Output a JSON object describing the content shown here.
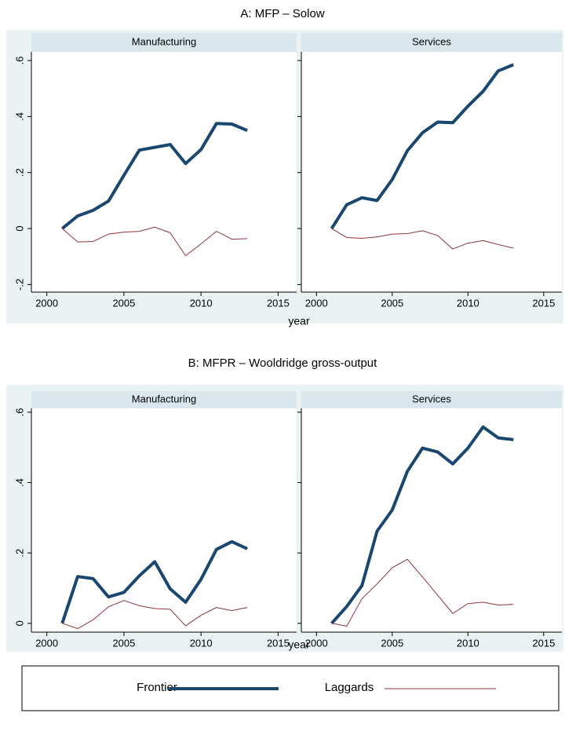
{
  "panels": [
    {
      "title": "A: MFP – Solow",
      "xlabel": "year"
    },
    {
      "title": "B: MFPR – Wooldridge gross-output",
      "xlabel": "year"
    }
  ],
  "chart_data": [
    {
      "type": "line",
      "title": "Manufacturing",
      "x": [
        2001,
        2002,
        2003,
        2004,
        2005,
        2006,
        2007,
        2008,
        2009,
        2010,
        2011,
        2012,
        2013
      ],
      "series": [
        {
          "name": "Frontier",
          "color": "#1a476f",
          "values": [
            0,
            0.045,
            0.065,
            0.098,
            0.19,
            0.28,
            0.29,
            0.3,
            0.232,
            0.282,
            0.375,
            0.373,
            0.35
          ]
        },
        {
          "name": "Laggards",
          "color": "#90353b",
          "values": [
            0,
            -0.048,
            -0.046,
            -0.02,
            -0.013,
            -0.01,
            0.005,
            -0.015,
            -0.097,
            -0.055,
            -0.01,
            -0.038,
            -0.036
          ]
        }
      ],
      "xlim": [
        1999,
        2016.2
      ],
      "xticks": [
        2000,
        2005,
        2010,
        2015
      ],
      "ylim": [
        -0.227,
        0.631
      ],
      "yticks": [
        {
          "value": -0.2,
          "label": "-.2"
        },
        0,
        {
          "value": 0.2,
          "label": ".2"
        },
        {
          "value": 0.4,
          "label": ".4"
        },
        {
          "value": 0.6,
          "label": ".6"
        }
      ]
    },
    {
      "type": "line",
      "title": "Services",
      "x": [
        2001,
        2002,
        2003,
        2004,
        2005,
        2006,
        2007,
        2008,
        2009,
        2010,
        2011,
        2012,
        2013
      ],
      "series": [
        {
          "name": "Frontier",
          "color": "#1a476f",
          "values": [
            0,
            0.085,
            0.11,
            0.1,
            0.175,
            0.278,
            0.342,
            0.38,
            0.378,
            0.437,
            0.49,
            0.563,
            0.585
          ]
        },
        {
          "name": "Laggards",
          "color": "#90353b",
          "values": [
            0,
            -0.032,
            -0.035,
            -0.03,
            -0.02,
            -0.018,
            -0.008,
            -0.025,
            -0.073,
            -0.052,
            -0.043,
            -0.057,
            -0.07
          ]
        }
      ],
      "xlim": [
        1999,
        2016.2
      ],
      "xticks": [
        2000,
        2005,
        2010,
        2015
      ],
      "ylim": [
        -0.227,
        0.631
      ],
      "yticks": [
        {
          "value": -0.2,
          "label": "-.2"
        },
        0,
        {
          "value": 0.2,
          "label": ".2"
        },
        {
          "value": 0.4,
          "label": ".4"
        },
        {
          "value": 0.6,
          "label": ".6"
        }
      ]
    },
    {
      "type": "line",
      "title": "Manufacturing",
      "x": [
        2001,
        2002,
        2003,
        2004,
        2005,
        2006,
        2007,
        2008,
        2009,
        2010,
        2011,
        2012,
        2013
      ],
      "series": [
        {
          "name": "Frontier",
          "color": "#1a476f",
          "values": [
            0,
            0.133,
            0.127,
            0.075,
            0.088,
            0.135,
            0.175,
            0.098,
            0.06,
            0.125,
            0.21,
            0.232,
            0.212
          ]
        },
        {
          "name": "Laggards",
          "color": "#90353b",
          "values": [
            0,
            -0.015,
            0.01,
            0.047,
            0.065,
            0.05,
            0.042,
            0.04,
            -0.007,
            0.023,
            0.045,
            0.036,
            0.045
          ]
        }
      ],
      "xlim": [
        1999,
        2016.2
      ],
      "xticks": [
        2000,
        2005,
        2010,
        2015
      ],
      "ylim": [
        -0.025,
        0.611
      ],
      "yticks": [
        0,
        {
          "value": 0.2,
          "label": ".2"
        },
        {
          "value": 0.4,
          "label": ".4"
        },
        {
          "value": 0.6,
          "label": ".6"
        }
      ]
    },
    {
      "type": "line",
      "title": "Services",
      "x": [
        2001,
        2002,
        2003,
        2004,
        2005,
        2006,
        2007,
        2008,
        2009,
        2010,
        2011,
        2012,
        2013
      ],
      "series": [
        {
          "name": "Frontier",
          "color": "#1a476f",
          "values": [
            0,
            0.048,
            0.107,
            0.262,
            0.322,
            0.432,
            0.498,
            0.487,
            0.453,
            0.498,
            0.558,
            0.527,
            0.522
          ]
        },
        {
          "name": "Laggards",
          "color": "#90353b",
          "values": [
            0,
            -0.008,
            0.07,
            0.112,
            0.158,
            0.182,
            0.132,
            0.08,
            0.028,
            0.056,
            0.06,
            0.052,
            0.054
          ]
        }
      ],
      "xlim": [
        1999,
        2016.2
      ],
      "xticks": [
        2000,
        2005,
        2010,
        2015
      ],
      "ylim": [
        -0.025,
        0.611
      ],
      "yticks": [
        0,
        {
          "value": 0.2,
          "label": ".2"
        },
        {
          "value": 0.4,
          "label": ".4"
        },
        {
          "value": 0.6,
          "label": ".6"
        }
      ]
    }
  ]
}
